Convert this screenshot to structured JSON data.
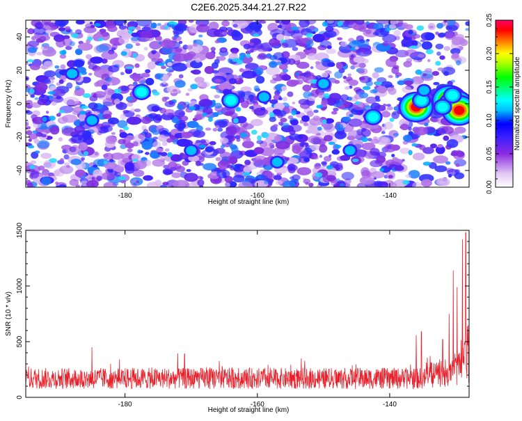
{
  "title": "C2E6.2025.344.21.27.R22",
  "chart_data": [
    {
      "type": "heatmap",
      "xlabel": "Height of straight line (km)",
      "ylabel": "Frequency (Hz)",
      "xlim": [
        -195,
        -128
      ],
      "ylim": [
        -50,
        50
      ],
      "x_ticks": [
        -180,
        -160,
        -140
      ],
      "y_ticks": [
        -40,
        -20,
        0,
        20,
        40
      ],
      "colorbar": {
        "label": "Normalized spectral amplitude",
        "range": [
          0,
          0.25
        ],
        "ticks": [
          0.0,
          0.05,
          0.1,
          0.15,
          0.2,
          0.25
        ],
        "tick_labels": [
          "0.00",
          "0.05",
          "0.10",
          "0.15",
          "0.20",
          "0.25"
        ],
        "colors": [
          "#ffffff",
          "#e3c8f5",
          "#8a2be2",
          "#3b1fff",
          "#0000ff",
          "#00bfff",
          "#00ffff",
          "#00ff66",
          "#00ff00",
          "#aaff00",
          "#ffff00",
          "#ff8000",
          "#ff0000",
          "#ff0066"
        ]
      },
      "hotspots": [
        {
          "x": -136,
          "y": -2,
          "value": 0.24
        },
        {
          "x": -135.2,
          "y": 2,
          "value": 0.14
        },
        {
          "x": -134.8,
          "y": 8,
          "value": 0.1
        },
        {
          "x": -131,
          "y": 2,
          "value": 0.25
        },
        {
          "x": -130,
          "y": -1,
          "value": 0.25
        },
        {
          "x": -129.5,
          "y": -4,
          "value": 0.25
        },
        {
          "x": -132,
          "y": -2,
          "value": 0.14
        },
        {
          "x": -130.5,
          "y": 5,
          "value": 0.12
        },
        {
          "x": -142.5,
          "y": -8,
          "value": 0.14
        },
        {
          "x": -177.5,
          "y": 7,
          "value": 0.13
        },
        {
          "x": -164,
          "y": 2,
          "value": 0.12
        },
        {
          "x": -159,
          "y": 4,
          "value": 0.1
        },
        {
          "x": -150,
          "y": 12,
          "value": 0.1
        },
        {
          "x": -188,
          "y": 18,
          "value": 0.1
        },
        {
          "x": -185,
          "y": -10,
          "value": 0.09
        },
        {
          "x": -170,
          "y": -28,
          "value": 0.09
        },
        {
          "x": -157,
          "y": -35,
          "value": 0.09
        },
        {
          "x": -146,
          "y": -28,
          "value": 0.09
        }
      ]
    },
    {
      "type": "line",
      "xlabel": "Height of straight line (km)",
      "ylabel": "SNR (10 * v/v)",
      "xlim": [
        -195,
        -128
      ],
      "ylim": [
        0,
        1500
      ],
      "x_ticks": [
        -180,
        -160,
        -140
      ],
      "y_ticks": [
        0,
        500,
        1000,
        1500
      ],
      "color": "#e8202a",
      "baseline_mean": 170,
      "baseline_amplitude": 95,
      "peaks": [
        {
          "x": -185,
          "y": 450
        },
        {
          "x": -171,
          "y": 390
        },
        {
          "x": -136,
          "y": 560
        },
        {
          "x": -135.2,
          "y": 590
        },
        {
          "x": -132,
          "y": 520
        },
        {
          "x": -131,
          "y": 750
        },
        {
          "x": -130.4,
          "y": 1140
        },
        {
          "x": -129.8,
          "y": 990
        },
        {
          "x": -129,
          "y": 1420
        },
        {
          "x": -128.5,
          "y": 1480
        }
      ]
    }
  ]
}
